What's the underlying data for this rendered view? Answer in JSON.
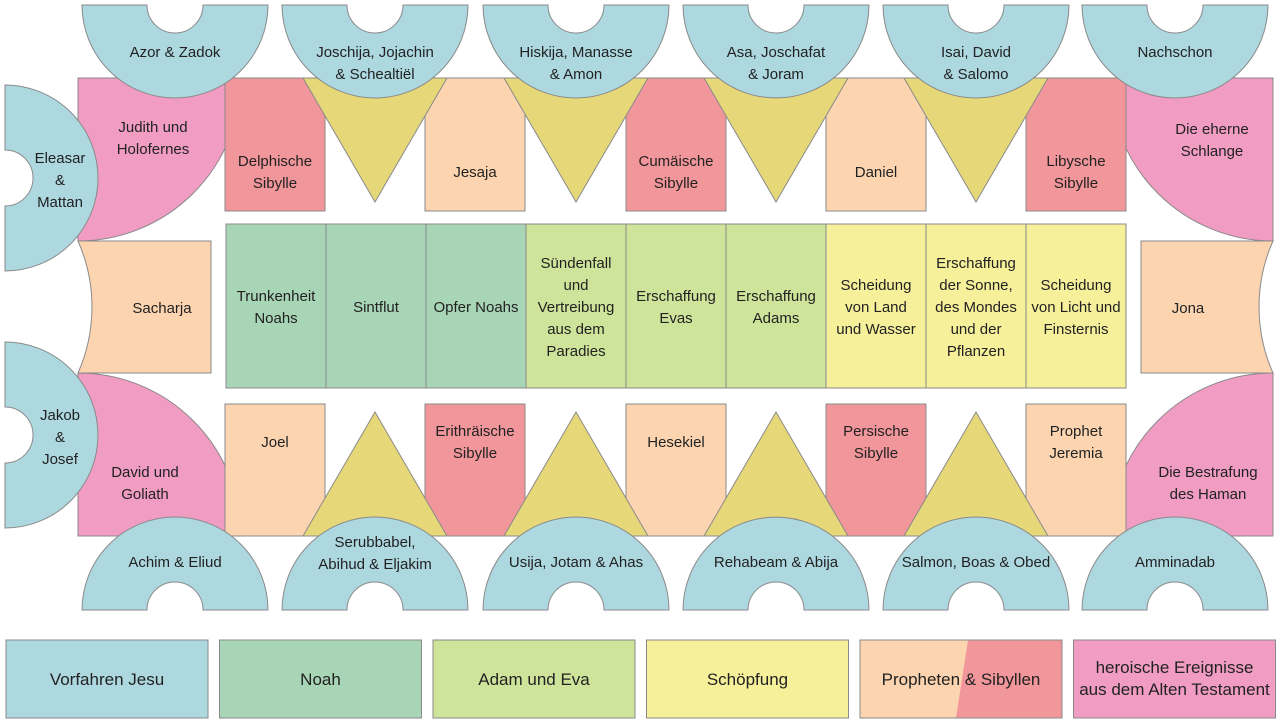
{
  "ancestors_top": [
    {
      "id": "azor",
      "lines": [
        "Azor & Zadok"
      ]
    },
    {
      "id": "joschija",
      "lines": [
        "Joschija, Jojachin",
        "& Schealtiël"
      ]
    },
    {
      "id": "hiskija",
      "lines": [
        "Hiskija, Manasse",
        "& Amon"
      ]
    },
    {
      "id": "asa",
      "lines": [
        "Asa, Joschafat",
        "& Joram"
      ]
    },
    {
      "id": "isai",
      "lines": [
        "Isai, David",
        "& Salomo"
      ]
    },
    {
      "id": "nachschon",
      "lines": [
        "Nachschon"
      ]
    }
  ],
  "ancestors_side": [
    {
      "id": "eleasar",
      "lines": [
        "Eleasar",
        "&",
        "Mattan"
      ]
    },
    {
      "id": "jakob",
      "lines": [
        "Jakob",
        "&",
        "Josef"
      ]
    }
  ],
  "ancestors_bottom": [
    {
      "id": "achim",
      "lines": [
        "Achim & Eliud"
      ]
    },
    {
      "id": "serubbabel",
      "lines": [
        "Serubbabel,",
        "Abihud & Eljakim"
      ]
    },
    {
      "id": "usija",
      "lines": [
        "Usija, Jotam & Ahas"
      ]
    },
    {
      "id": "rehabeam",
      "lines": [
        "Rehabeam & Abija"
      ]
    },
    {
      "id": "salmon",
      "lines": [
        "Salmon, Boas & Obed"
      ]
    },
    {
      "id": "amminadab",
      "lines": [
        "Amminadab"
      ]
    }
  ],
  "corners": [
    {
      "id": "judith",
      "lines": [
        "Judith und",
        "Holofernes"
      ]
    },
    {
      "id": "schlange",
      "lines": [
        "Die eherne",
        "Schlange"
      ]
    },
    {
      "id": "david-goliath",
      "lines": [
        "David und",
        "Goliath"
      ]
    },
    {
      "id": "haman",
      "lines": [
        "Die Bestrafung",
        "des Haman"
      ]
    }
  ],
  "prophets_top": [
    {
      "id": "delphische",
      "kind": "sibyl",
      "lines": [
        "Delphische",
        "Sibylle"
      ]
    },
    {
      "id": "jesaja",
      "kind": "prophet",
      "lines": [
        "Jesaja"
      ]
    },
    {
      "id": "cumaeische",
      "kind": "sibyl",
      "lines": [
        "Cumäische",
        "Sibylle"
      ]
    },
    {
      "id": "daniel",
      "kind": "prophet",
      "lines": [
        "Daniel"
      ]
    },
    {
      "id": "libysche",
      "kind": "sibyl",
      "lines": [
        "Libysche",
        "Sibylle"
      ]
    }
  ],
  "prophets_side": [
    {
      "id": "sacharja",
      "lines": [
        "Sacharja"
      ]
    },
    {
      "id": "jona",
      "lines": [
        "Jona"
      ]
    }
  ],
  "prophets_bottom": [
    {
      "id": "joel",
      "kind": "prophet",
      "lines": [
        "Joel"
      ]
    },
    {
      "id": "erithraeische",
      "kind": "sibyl",
      "lines": [
        "Erithräische",
        "Sibylle"
      ]
    },
    {
      "id": "hesekiel",
      "kind": "prophet",
      "lines": [
        "Hesekiel"
      ]
    },
    {
      "id": "persische",
      "kind": "sibyl",
      "lines": [
        "Persische",
        "Sibylle"
      ]
    },
    {
      "id": "jeremia",
      "kind": "prophet",
      "lines": [
        "Prophet",
        "Jeremia"
      ]
    }
  ],
  "center_panels": [
    {
      "id": "trunkenheit",
      "group": "noah",
      "lines": [
        "Trunkenheit",
        "Noahs"
      ]
    },
    {
      "id": "sintflut",
      "group": "noah",
      "lines": [
        "Sintflut"
      ]
    },
    {
      "id": "opfer",
      "group": "noah",
      "lines": [
        "Opfer Noahs"
      ]
    },
    {
      "id": "suendenfall",
      "group": "adam",
      "lines": [
        "Sündenfall",
        "und",
        "Vertreibung",
        "aus dem",
        "Paradies"
      ]
    },
    {
      "id": "evas",
      "group": "adam",
      "lines": [
        "Erschaffung",
        "Evas"
      ]
    },
    {
      "id": "adams",
      "group": "adam",
      "lines": [
        "Erschaffung",
        "Adams"
      ]
    },
    {
      "id": "land-wasser",
      "group": "schoepfung",
      "lines": [
        "Scheidung",
        "von Land",
        "und Wasser"
      ]
    },
    {
      "id": "sonne",
      "group": "schoepfung",
      "lines": [
        "Erschaffung",
        "der Sonne,",
        "des Mondes",
        "und der",
        "Pflanzen"
      ]
    },
    {
      "id": "licht",
      "group": "schoepfung",
      "lines": [
        "Scheidung",
        "von Licht und",
        "Finsternis"
      ]
    }
  ],
  "legend": [
    {
      "id": "vorfahren",
      "label": "Vorfahren Jesu",
      "color": "#add8e0"
    },
    {
      "id": "noah",
      "label": "Noah",
      "color": "#a8d5b5"
    },
    {
      "id": "adam-eva",
      "label": "Adam und Eva",
      "color": "#cfe49b"
    },
    {
      "id": "schoepfung",
      "label": "Schöpfung",
      "color": "#f6f09b"
    },
    {
      "id": "propheten",
      "label": "Propheten & Sibyllen",
      "color": "#fcd4b0",
      "color2": "#f1969a"
    },
    {
      "id": "heroische",
      "lines": [
        "heroische Ereignisse",
        "aus dem Alten Testament"
      ],
      "color": "#f19cc3"
    }
  ]
}
